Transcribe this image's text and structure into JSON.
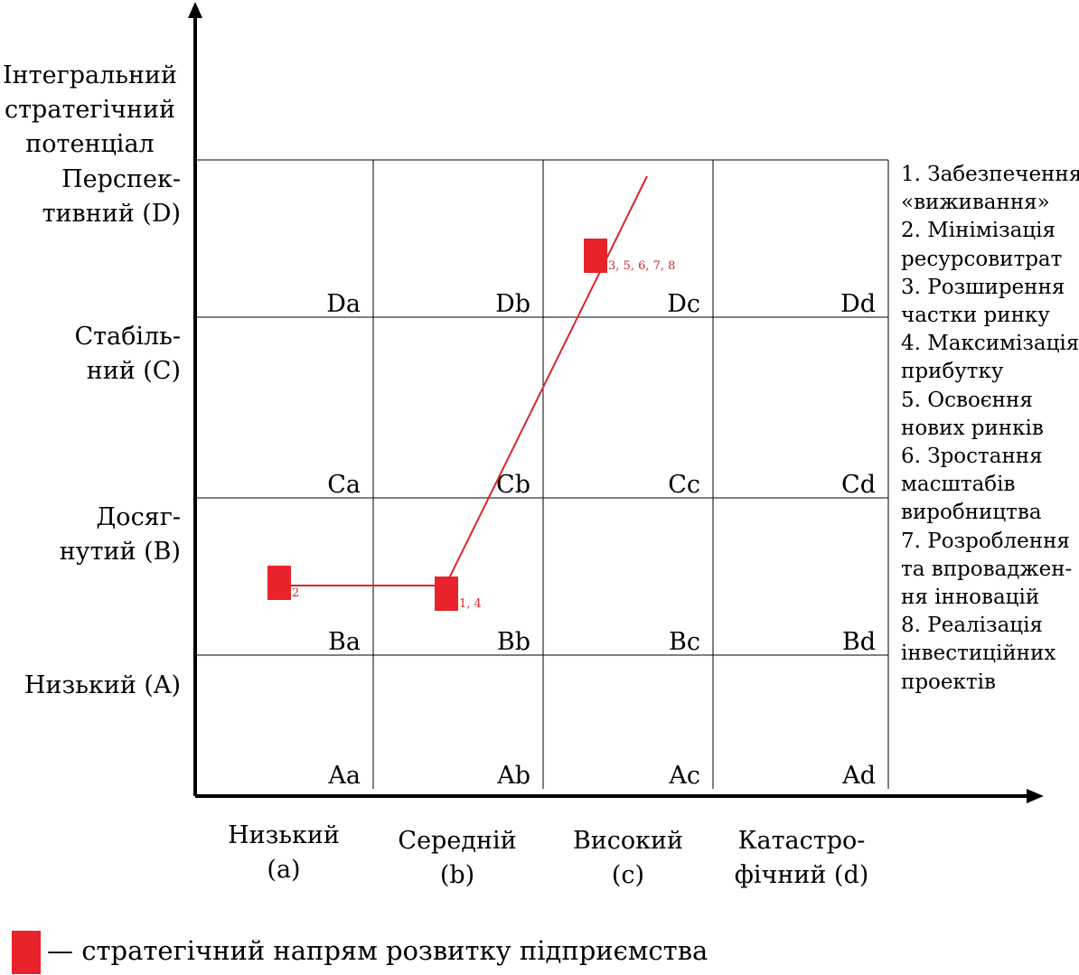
{
  "y_axis": {
    "title": [
      "Інтегральний",
      "стратегічний",
      "потенціал"
    ],
    "levels": [
      {
        "code": "D",
        "lines": [
          "Перспек-",
          "тивний (D)"
        ]
      },
      {
        "code": "C",
        "lines": [
          "Стабіль-",
          "ний (C)"
        ]
      },
      {
        "code": "B",
        "lines": [
          "Досяг-",
          "нутий (B)"
        ]
      },
      {
        "code": "A",
        "lines": [
          "Низький (A)"
        ]
      }
    ]
  },
  "x_axis": {
    "levels": [
      {
        "code": "a",
        "lines": [
          "Низький",
          "(a)"
        ]
      },
      {
        "code": "b",
        "lines": [
          "Середній",
          "(b)"
        ]
      },
      {
        "code": "c",
        "lines": [
          "Високий",
          "(c)"
        ]
      },
      {
        "code": "d",
        "lines": [
          "Катастро-",
          "фічний (d)"
        ]
      }
    ]
  },
  "cells": [
    [
      "Da",
      "Db",
      "Dc",
      "Dd"
    ],
    [
      "Ca",
      "Cb",
      "Cc",
      "Cd"
    ],
    [
      "Ba",
      "Bb",
      "Bc",
      "Bd"
    ],
    [
      "Aa",
      "Ab",
      "Ac",
      "Ad"
    ]
  ],
  "markers": [
    {
      "cell": "Ba",
      "label": "2"
    },
    {
      "cell": "Bb",
      "label": "1, 4"
    },
    {
      "cell": "Dc",
      "label": "3, 5, 6, 7, 8"
    }
  ],
  "directions_list": [
    [
      "1. Забезпечення",
      "«виживання»"
    ],
    [
      "2. Мінімізація",
      "ресурсовитрат"
    ],
    [
      "3. Розширення",
      "частки ринку"
    ],
    [
      "4. Максимізація",
      "прибутку"
    ],
    [
      "5. Освоєння",
      "нових ринків"
    ],
    [
      "6. Зростання",
      "масштабів",
      "виробництва"
    ],
    [
      "7. Розроблення",
      "та впроваджен-",
      "ня інновацій"
    ],
    [
      "8. Реалізація",
      "інвестиційних",
      "проектів"
    ]
  ],
  "legend_key": "— стратегічний напрям розвитку підприємства",
  "colors": {
    "marker": "#e8232b",
    "line": "#d9262c",
    "axis": "#000000",
    "grid": "#000000"
  }
}
